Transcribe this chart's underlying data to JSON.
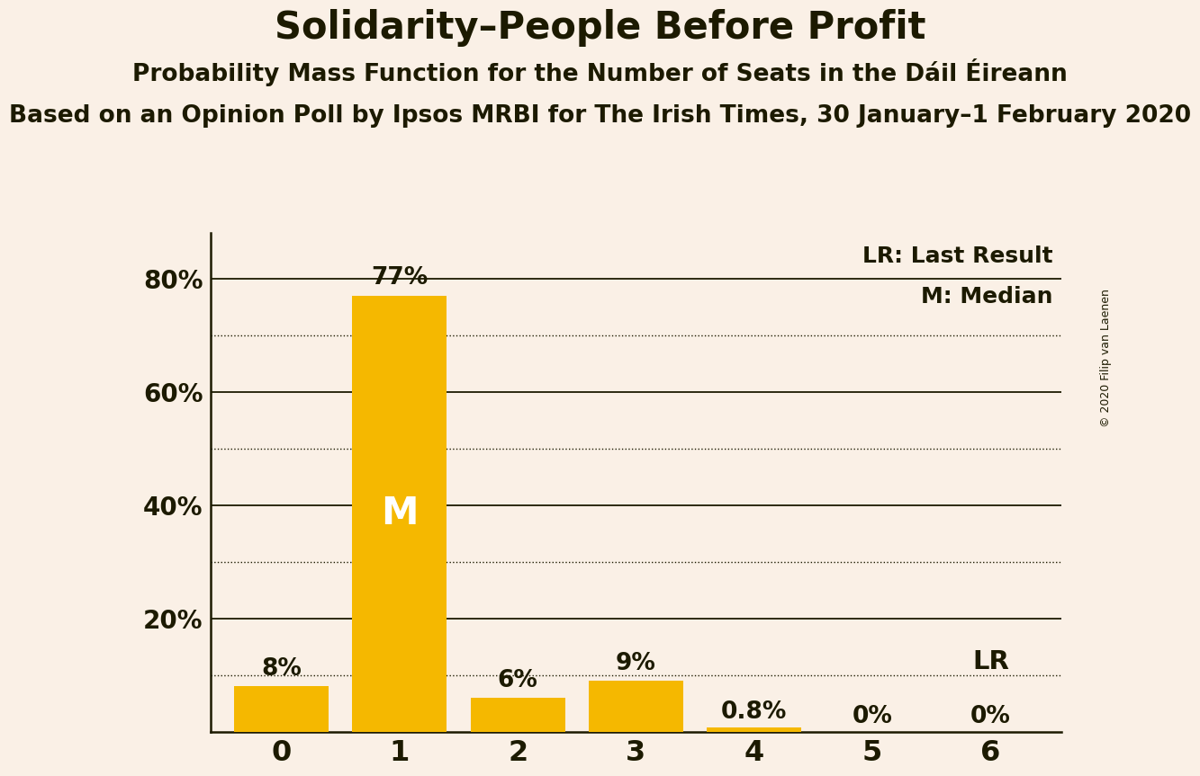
{
  "title": "Solidarity–People Before Profit",
  "subtitle1": "Probability Mass Function for the Number of Seats in the Dáil Éireann",
  "subtitle2": "Based on an Opinion Poll by Ipsos MRBI for The Irish Times, 30 January–1 February 2020",
  "copyright": "© 2020 Filip van Laenen",
  "categories": [
    0,
    1,
    2,
    3,
    4,
    5,
    6
  ],
  "values": [
    0.08,
    0.77,
    0.06,
    0.09,
    0.008,
    0.0,
    0.0
  ],
  "labels": [
    "8%",
    "77%",
    "6%",
    "9%",
    "0.8%",
    "0%",
    "0%"
  ],
  "bar_color": "#F5B800",
  "median_bar": 1,
  "median_label": "M",
  "lr_bar": 6,
  "lr_label": "LR",
  "background_color": "#FAF0E6",
  "text_color": "#1C1A00",
  "ylim": [
    0,
    0.88
  ],
  "yticks": [
    0.2,
    0.4,
    0.6,
    0.8
  ],
  "ytick_labels": [
    "20%",
    "40%",
    "60%",
    "80%"
  ],
  "solid_yticks": [
    0.2,
    0.4,
    0.6,
    0.8
  ],
  "dotted_yticks": [
    0.1,
    0.3,
    0.5,
    0.7
  ],
  "legend_lr": "LR: Last Result",
  "legend_m": "M: Median",
  "title_fontsize": 30,
  "subtitle1_fontsize": 19,
  "subtitle2_fontsize": 19,
  "label_fontsize": 19,
  "ytick_fontsize": 20,
  "xtick_fontsize": 23,
  "median_fontsize": 30,
  "lr_anno_fontsize": 21,
  "copyright_fontsize": 9
}
